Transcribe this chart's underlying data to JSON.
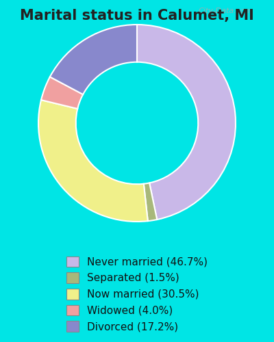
{
  "title": "Marital status in Calumet, MI",
  "slices": [
    {
      "label": "Never married (46.7%)",
      "value": 46.7,
      "color": "#c9b8e8"
    },
    {
      "label": "Separated (1.5%)",
      "value": 1.5,
      "color": "#a8b87a"
    },
    {
      "label": "Now married (30.5%)",
      "value": 30.5,
      "color": "#f0f08a"
    },
    {
      "label": "Widowed (4.0%)",
      "value": 4.0,
      "color": "#f0a0a0"
    },
    {
      "label": "Divorced (17.2%)",
      "value": 17.2,
      "color": "#8888cc"
    }
  ],
  "bg_outer": "#00e5e5",
  "bg_chart": "#d8f0e0",
  "watermark": "City-Data.com",
  "title_fontsize": 15,
  "legend_fontsize": 11,
  "donut_width": 0.38,
  "start_angle": 90
}
